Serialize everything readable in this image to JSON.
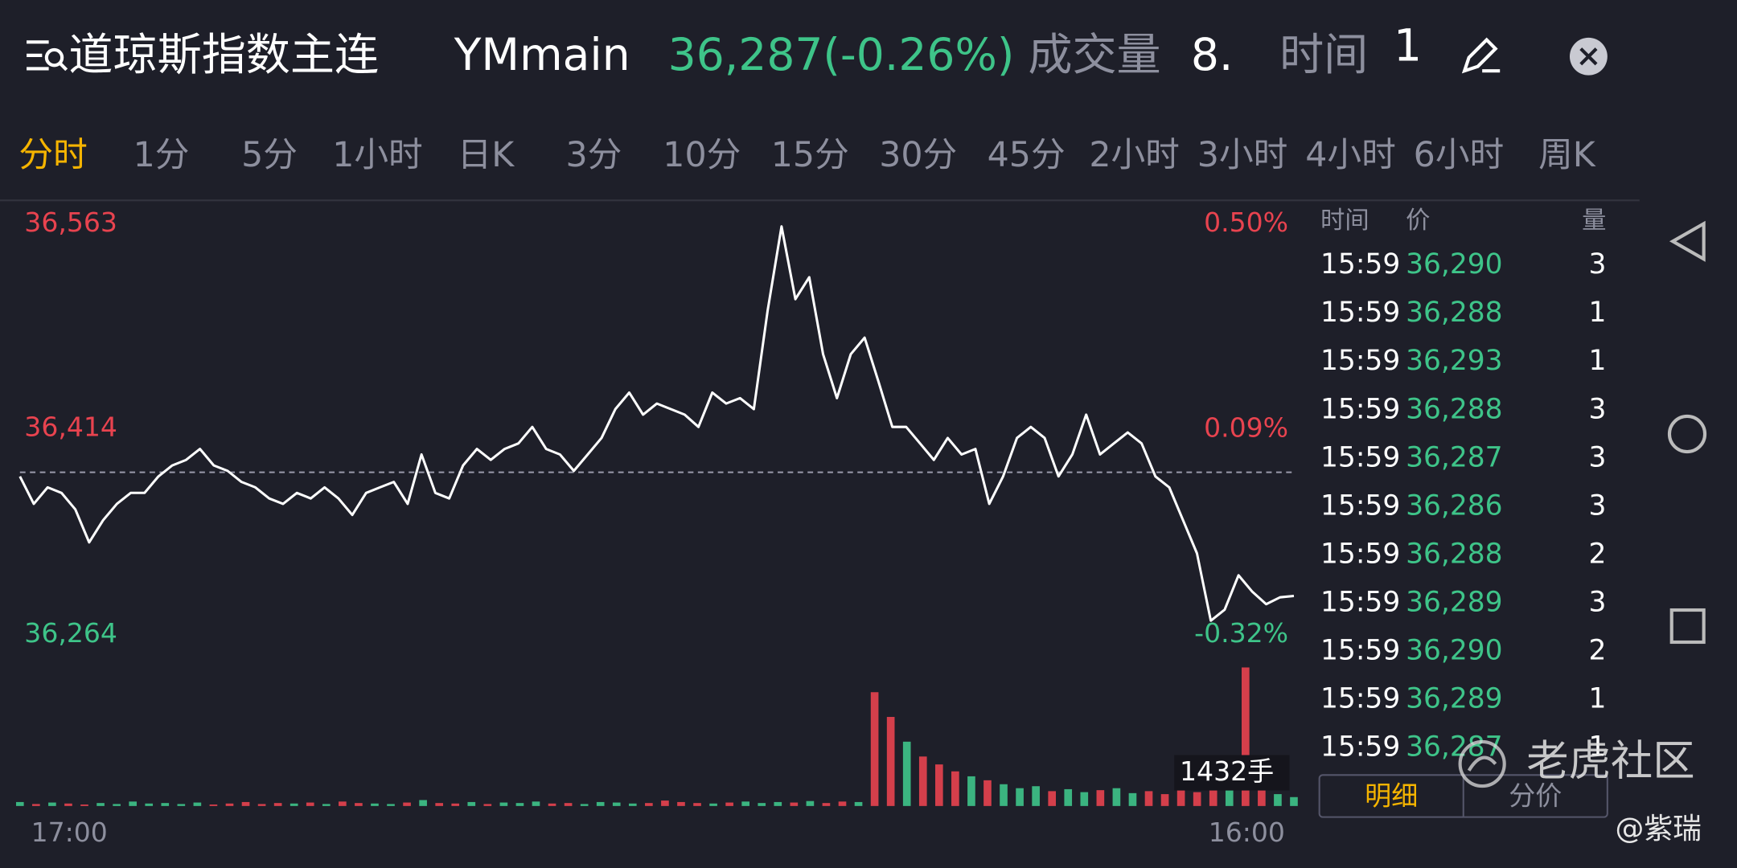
{
  "header": {
    "title": "道琼斯指数主连",
    "symbol": "YMmain",
    "quote": "36,287(-0.26%)",
    "volume_label": "成交量",
    "volume_value": "8.",
    "time_label": "时间",
    "time_value": "1"
  },
  "tabs": {
    "items": [
      "分时",
      "1分",
      "5分",
      "1小时",
      "日K",
      "3分",
      "10分",
      "15分",
      "30分",
      "45分",
      "2小时",
      "3小时",
      "4小时",
      "6小时",
      "周K"
    ],
    "active": 0,
    "active_color": "#f5b400"
  },
  "chart_data": {
    "type": "line",
    "color": "#ffffff",
    "values": [
      36379,
      36359,
      36371,
      36367,
      36355,
      36331,
      36347,
      36359,
      36367,
      36367,
      36379,
      36387,
      36391,
      36399,
      36387,
      36383,
      36375,
      36371,
      36363,
      36359,
      36367,
      36363,
      36371,
      36363,
      36351,
      36367,
      36371,
      36375,
      36359,
      36395,
      36367,
      36363,
      36387,
      36399,
      36391,
      36399,
      36403,
      36415,
      36399,
      36395,
      36383,
      36395,
      36407,
      36428,
      36440,
      36424,
      36432,
      36428,
      36424,
      36415,
      36440,
      36432,
      36436,
      36428,
      36500,
      36561,
      36508,
      36524,
      36468,
      36436,
      36468,
      36480,
      36448,
      36415,
      36415,
      36403,
      36391,
      36407,
      36395,
      36399,
      36359,
      36379,
      36407,
      36415,
      36407,
      36379,
      36395,
      36424,
      36395,
      36403,
      36411,
      36403,
      36379,
      36371,
      36347,
      36323,
      36274,
      36282,
      36307,
      36295,
      36286,
      36291,
      36292
    ],
    "ylim": [
      36264,
      36563
    ],
    "yticks": [
      {
        "value": 36563,
        "label": "36,563"
      },
      {
        "value": 36414,
        "label": "36,414"
      },
      {
        "value": 36264,
        "label": "36,264"
      }
    ],
    "y2lim": [
      -0.32,
      0.5
    ],
    "y2ticks": [
      {
        "value": 0.5,
        "label": "0.50%"
      },
      {
        "value": 0.09,
        "label": "0.09%"
      },
      {
        "value": -0.32,
        "label": "-0.32%"
      }
    ],
    "reference_line": 36382,
    "xlabels": [
      "17:00",
      "16:00"
    ],
    "up_color": "#3ec489",
    "down_color": "#e8434f",
    "volume": {
      "values": [
        40,
        20,
        35,
        25,
        15,
        30,
        20,
        45,
        25,
        30,
        20,
        35,
        15,
        25,
        40,
        20,
        30,
        25,
        35,
        20,
        45,
        30,
        25,
        20,
        35,
        60,
        30,
        25,
        40,
        20,
        35,
        30,
        45,
        25,
        30,
        20,
        40,
        35,
        25,
        30,
        55,
        40,
        30,
        25,
        35,
        45,
        30,
        40,
        35,
        50,
        30,
        45,
        40,
        1150,
        900,
        650,
        500,
        420,
        350,
        300,
        260,
        220,
        180,
        200,
        150,
        170,
        140,
        160,
        180,
        130,
        150,
        120,
        160,
        140,
        200,
        260,
        1400,
        200,
        120,
        90
      ],
      "ylim": [
        0,
        1432
      ],
      "yticks": [
        {
          "value": 1432,
          "label": "1432手"
        }
      ]
    }
  },
  "book": {
    "columns": [
      "时间",
      "价",
      "量"
    ],
    "rows": [
      [
        "15:59",
        "36,290",
        "3"
      ],
      [
        "15:59",
        "36,288",
        "1"
      ],
      [
        "15:59",
        "36,293",
        "1"
      ],
      [
        "15:59",
        "36,288",
        "3"
      ],
      [
        "15:59",
        "36,287",
        "3"
      ],
      [
        "15:59",
        "36,286",
        "3"
      ],
      [
        "15:59",
        "36,288",
        "2"
      ],
      [
        "15:59",
        "36,289",
        "3"
      ],
      [
        "15:59",
        "36,290",
        "2"
      ],
      [
        "15:59",
        "36,289",
        "1"
      ],
      [
        "15:59",
        "36,287",
        "1"
      ]
    ],
    "buttons": [
      "明细",
      "分价"
    ]
  },
  "watermark": {
    "brand": "老虎社区",
    "author": "@紫瑞"
  }
}
